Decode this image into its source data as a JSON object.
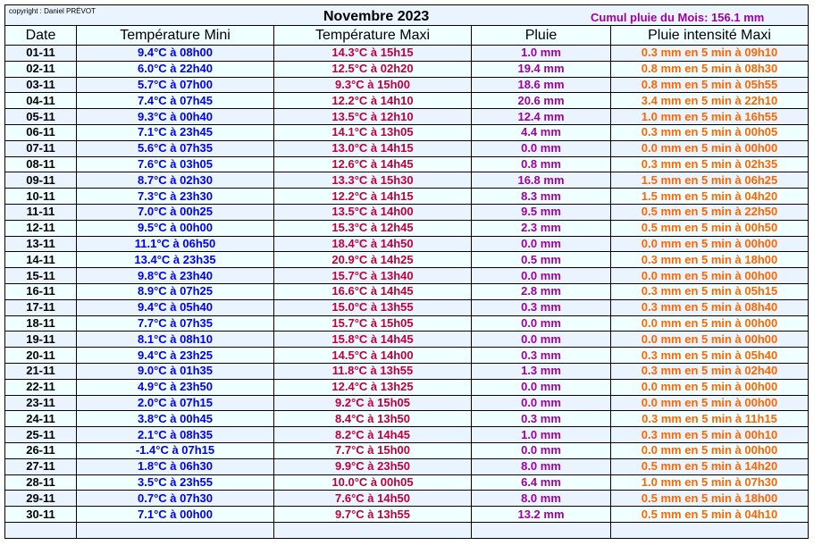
{
  "copyright": "copyright : Daniel PRÉVOT",
  "title": "Novembre 2023",
  "cumul": "Cumul pluie du Mois: 156.1 mm",
  "colors": {
    "mini": "#0000ee",
    "maxi": "#c0003a",
    "pluie": "#a000a0",
    "intensite": "#ff6600"
  },
  "headers": [
    "Date",
    "Température Mini",
    "Température Maxi",
    "Pluie",
    "Pluie intensité Maxi"
  ],
  "rows": [
    [
      "01-11",
      "9.4°C à 08h00",
      "14.3°C à 15h15",
      "1.0 mm",
      "0.3 mm en 5 min à 09h10"
    ],
    [
      "02-11",
      "6.0°C à 22h40",
      "12.5°C à 02h20",
      "19.4 mm",
      "0.8 mm en 5 min à 08h30"
    ],
    [
      "03-11",
      "5.7°C à 07h00",
      "9.3°C à 15h00",
      "18.6 mm",
      "0.8 mm en 5 min à 05h55"
    ],
    [
      "04-11",
      "7.4°C à 07h45",
      "12.2°C à 14h10",
      "20.6 mm",
      "3.4 mm en 5 min à 22h10"
    ],
    [
      "05-11",
      "9.3°C à 00h40",
      "13.5°C à 12h10",
      "12.4 mm",
      "1.0 mm en 5 min à 16h55"
    ],
    [
      "06-11",
      "7.1°C à 23h45",
      "14.1°C à 13h05",
      "4.4 mm",
      "0.3 mm en 5 min à 00h05"
    ],
    [
      "07-11",
      "5.6°C à 07h35",
      "13.0°C à 14h15",
      "0.0 mm",
      "0.0 mm en 5 min à 00h00"
    ],
    [
      "08-11",
      "7.6°C à 03h05",
      "12.6°C à 14h45",
      "0.8 mm",
      "0.3 mm en 5 min à 02h35"
    ],
    [
      "09-11",
      "8.7°C à 02h30",
      "13.3°C à 15h30",
      "16.8 mm",
      "1.5 mm en 5 min à 06h25"
    ],
    [
      "10-11",
      "7.3°C à 23h30",
      "12.2°C à 14h15",
      "8.3 mm",
      "1.5 mm en 5 min à 04h20"
    ],
    [
      "11-11",
      "7.0°C à 00h25",
      "13.5°C à 14h00",
      "9.5 mm",
      "0.5 mm en 5 min à 22h50"
    ],
    [
      "12-11",
      "9.5°C à 00h00",
      "15.3°C à 12h45",
      "2.3 mm",
      "0.5 mm en 5 min à 00h50"
    ],
    [
      "13-11",
      "11.1°C à 06h50",
      "18.4°C à 14h50",
      "0.0 mm",
      "0.0 mm en 5 min à 00h00"
    ],
    [
      "14-11",
      "13.4°C à 23h35",
      "20.9°C à 14h25",
      "0.5 mm",
      "0.3 mm en 5 min à 18h00"
    ],
    [
      "15-11",
      "9.8°C à 23h40",
      "15.7°C à 13h40",
      "0.0 mm",
      "0.0 mm en 5 min à 00h00"
    ],
    [
      "16-11",
      "8.9°C à 07h25",
      "16.6°C à 14h45",
      "2.8 mm",
      "0.3 mm en 5 min à 05h15"
    ],
    [
      "17-11",
      "9.4°C à 05h40",
      "15.0°C à 13h55",
      "0.3 mm",
      "0.3 mm en 5 min à 08h40"
    ],
    [
      "18-11",
      "7.7°C à 07h35",
      "15.7°C à 15h05",
      "0.0 mm",
      "0.0 mm en 5 min à 00h00"
    ],
    [
      "19-11",
      "8.1°C à 08h10",
      "15.8°C à 14h45",
      "0.0 mm",
      "0.0 mm en 5 min à 00h00"
    ],
    [
      "20-11",
      "9.4°C à 23h25",
      "14.5°C à 14h00",
      "0.3 mm",
      "0.3 mm en 5 min à 05h40"
    ],
    [
      "21-11",
      "9.0°C à 01h35",
      "11.8°C à 13h55",
      "1.3 mm",
      "0.3 mm en 5 min à 02h40"
    ],
    [
      "22-11",
      "4.9°C à 23h50",
      "12.4°C à 13h25",
      "0.0 mm",
      "0.0 mm en 5 min à 00h00"
    ],
    [
      "23-11",
      "2.0°C à 07h15",
      "9.2°C à 15h05",
      "0.0 mm",
      "0.0 mm en 5 min à 00h00"
    ],
    [
      "24-11",
      "3.8°C à 00h45",
      "8.4°C à 13h50",
      "0.3 mm",
      "0.3 mm en 5 min à 11h15"
    ],
    [
      "25-11",
      "2.1°C à 08h35",
      "8.2°C à 14h45",
      "1.0 mm",
      "0.3 mm en 5 min à 00h10"
    ],
    [
      "26-11",
      "-1.4°C à 07h15",
      "7.7°C à 15h00",
      "0.0 mm",
      "0.0 mm en 5 min à 00h00"
    ],
    [
      "27-11",
      "1.8°C à 06h30",
      "9.9°C à 23h50",
      "8.0 mm",
      "0.5 mm en 5 min à 14h20"
    ],
    [
      "28-11",
      "3.5°C à 23h55",
      "10.0°C à 00h05",
      "6.4 mm",
      "1.0 mm en 5 min à 07h30"
    ],
    [
      "29-11",
      "0.7°C à 07h30",
      "7.6°C à 14h50",
      "8.0 mm",
      "0.5 mm en 5 min à 18h00"
    ],
    [
      "30-11",
      "7.1°C à 00h00",
      "9.7°C à 13h55",
      "13.2 mm",
      "0.5 mm en 5 min à 04h10"
    ],
    [
      "",
      "",
      "",
      "",
      ""
    ]
  ]
}
